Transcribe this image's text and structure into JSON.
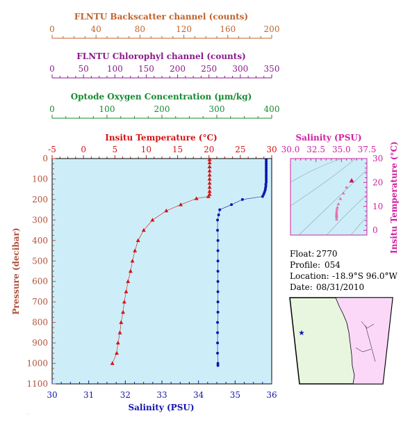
{
  "float_info": {
    "float_label": "Float:",
    "float_value": "2770",
    "profile_label": "Profile:",
    "profile_value": "054",
    "location_label": "Location:",
    "location_value": "-18.9°S  96.0°W",
    "date_label": "Date:",
    "date_value": "08/31/2010"
  },
  "footer_text": "...",
  "colors": {
    "backscatter": "#c0622a",
    "chlorophyll": "#8a1a8a",
    "oxygen": "#138a2f",
    "temperature": "#d41414",
    "salinity": "#1313b0",
    "pressure": "#b0503a",
    "ts_axis": "#d020a0",
    "plot_bg": "#cdeef8",
    "map_ocean": "#e8f6e0",
    "map_land": "#fbd8f8"
  },
  "chart_data": [
    {
      "type": "line",
      "title": "",
      "top_axes": [
        {
          "label": "FLNTU Backscatter channel (counts)",
          "range": [
            0,
            200
          ],
          "ticks": [
            "0",
            "40",
            "80",
            "120",
            "160",
            "200"
          ],
          "color": "backscatter"
        },
        {
          "label": "FLNTU Chlorophyl channel (counts)",
          "range": [
            0,
            350
          ],
          "ticks": [
            "0",
            "50",
            "100",
            "150",
            "200",
            "250",
            "300",
            "350"
          ],
          "color": "chlorophyll"
        },
        {
          "label": "Optode Oxygen Concentration (µm/kg)",
          "range": [
            0,
            400
          ],
          "ticks": [
            "0",
            "100",
            "200",
            "300",
            "400"
          ],
          "color": "oxygen"
        },
        {
          "label": "Insitu Temperature (°C)",
          "range": [
            -5,
            30
          ],
          "ticks": [
            "-5",
            "0",
            "5",
            "10",
            "15",
            "20",
            "25",
            "30"
          ],
          "color": "temperature"
        }
      ],
      "xlabel": "Salinity (PSU)",
      "xlim": [
        30,
        36
      ],
      "x_ticks": [
        "30",
        "31",
        "32",
        "33",
        "34",
        "35",
        "36"
      ],
      "ylabel": "Pressure (decibar)",
      "ylim": [
        0,
        1100
      ],
      "y_ticks": [
        "0",
        "100",
        "200",
        "300",
        "400",
        "500",
        "600",
        "700",
        "800",
        "900",
        "1000",
        "1100"
      ],
      "series": [
        {
          "name": "Insitu Temperature (°C)",
          "marker": "triangle",
          "axis": "temperature",
          "pressure": [
            5,
            20,
            40,
            60,
            80,
            100,
            120,
            140,
            160,
            175,
            185,
            195,
            225,
            255,
            300,
            350,
            400,
            450,
            500,
            550,
            600,
            650,
            700,
            750,
            800,
            850,
            900,
            950,
            1000
          ],
          "values": [
            20.1,
            20.1,
            20.1,
            20.1,
            20.1,
            20.1,
            20.1,
            20.1,
            20.1,
            20.1,
            19.9,
            18.0,
            15.5,
            13.2,
            11.0,
            9.6,
            8.7,
            8.2,
            7.8,
            7.5,
            7.1,
            6.8,
            6.5,
            6.3,
            6.0,
            5.8,
            5.5,
            5.3,
            4.6
          ]
        },
        {
          "name": "Salinity (PSU)",
          "marker": "circle",
          "axis": "salinity",
          "pressure": [
            5,
            15,
            25,
            35,
            45,
            55,
            65,
            75,
            85,
            95,
            105,
            115,
            125,
            135,
            145,
            155,
            165,
            175,
            185,
            200,
            225,
            250,
            275,
            300,
            350,
            400,
            450,
            500,
            550,
            600,
            650,
            700,
            750,
            800,
            850,
            900,
            950,
            1000,
            1010
          ],
          "values": [
            35.85,
            35.85,
            35.85,
            35.85,
            35.85,
            35.85,
            35.85,
            35.85,
            35.85,
            35.85,
            35.85,
            35.85,
            35.84,
            35.84,
            35.83,
            35.82,
            35.8,
            35.78,
            35.75,
            35.2,
            34.9,
            34.58,
            34.55,
            34.52,
            34.52,
            34.53,
            34.53,
            34.53,
            34.53,
            34.53,
            34.53,
            34.53,
            34.53,
            34.52,
            34.52,
            34.52,
            34.52,
            34.53,
            34.53
          ]
        }
      ]
    },
    {
      "type": "scatter",
      "title": "",
      "xlabel": "Salinity (PSU)",
      "ylabel": "Insitu Temperature (°C)",
      "xlim": [
        30,
        37.5
      ],
      "ylim": [
        -2,
        30
      ],
      "x_ticks": [
        "30.0",
        "32.5",
        "35.0",
        "37.5"
      ],
      "y_ticks": [
        "0",
        "10",
        "20",
        "30"
      ],
      "points": [
        {
          "s": 36.0,
          "t": 20.8
        },
        {
          "s": 35.5,
          "t": 18.0
        },
        {
          "s": 35.2,
          "t": 15.5
        },
        {
          "s": 34.9,
          "t": 13.2
        },
        {
          "s": 34.7,
          "t": 11.0
        },
        {
          "s": 34.6,
          "t": 9.6
        },
        {
          "s": 34.55,
          "t": 8.7
        },
        {
          "s": 34.53,
          "t": 7.8
        },
        {
          "s": 34.52,
          "t": 7.1
        },
        {
          "s": 34.52,
          "t": 6.5
        },
        {
          "s": 34.52,
          "t": 6.0
        },
        {
          "s": 34.52,
          "t": 5.5
        },
        {
          "s": 34.53,
          "t": 4.6
        }
      ]
    }
  ]
}
